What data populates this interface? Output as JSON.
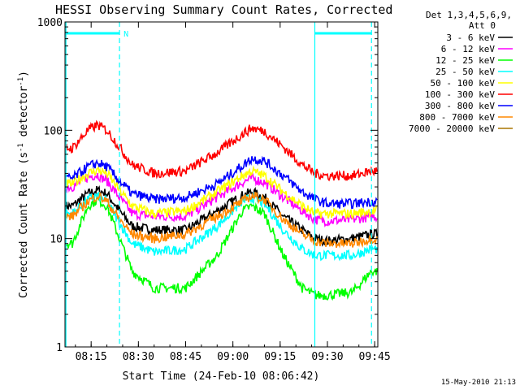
{
  "chart_data": {
    "type": "line",
    "title": "HESSI Observing Summary Count Rates, Corrected",
    "xlabel": "Start Time (24-Feb-10 08:06:42)",
    "ylabel_main": "Corrected Count Rate (s",
    "ylabel_sup1": "-1",
    "ylabel_mid": " detector",
    "ylabel_sup2": "-1",
    "ylabel_end": ")",
    "xlim": [
      "08:06:42",
      "09:46:00"
    ],
    "ylim": [
      1,
      1000
    ],
    "yscale": "log",
    "x_ticks": [
      "08:15",
      "08:30",
      "08:45",
      "09:00",
      "09:15",
      "09:30",
      "09:45"
    ],
    "y_ticks": [
      "1",
      "10",
      "100",
      "1000"
    ],
    "legend_header": [
      "Det 1,3,4,5,6,9,",
      "Att 0"
    ],
    "legend_position": "right",
    "timestamp": "15-May-2010 21:13",
    "annotations": [
      {
        "type": "night",
        "text": "N",
        "x_start": "08:07",
        "x_end": "08:24",
        "color": "#00ffff"
      },
      {
        "type": "night",
        "text": "",
        "x_start": "09:26",
        "x_end": "09:44",
        "color": "#00ffff"
      }
    ],
    "x": [
      "08:09",
      "08:14",
      "08:17",
      "08:20",
      "08:24",
      "08:28",
      "08:35",
      "08:45",
      "08:55",
      "09:03",
      "09:06",
      "09:10",
      "09:16",
      "09:22",
      "09:26",
      "09:30",
      "09:38",
      "09:44"
    ],
    "series": [
      {
        "name": "3 - 6 keV",
        "color": "#000000",
        "values": [
          20,
          26,
          28,
          26,
          18,
          13,
          12,
          12,
          18,
          25,
          27,
          24,
          16,
          12,
          10,
          9.5,
          10,
          11
        ]
      },
      {
        "name": "6 - 12 keV",
        "color": "#ff00ff",
        "values": [
          30,
          37,
          39,
          34,
          24,
          17,
          16,
          16,
          24,
          33,
          36,
          33,
          24,
          18,
          15,
          14.5,
          15,
          16
        ]
      },
      {
        "name": "12 - 25 keV",
        "color": "#00ff00",
        "values": [
          9,
          20,
          23,
          20,
          10,
          5,
          3.5,
          3.5,
          7,
          18,
          20,
          17,
          7,
          3.5,
          3,
          3,
          3.2,
          5
        ]
      },
      {
        "name": "25 - 50 keV",
        "color": "#00ffff",
        "values": [
          17,
          23,
          25,
          22,
          14,
          9,
          7.5,
          8,
          13,
          22,
          24,
          21,
          12,
          8,
          7,
          7,
          7,
          8
        ]
      },
      {
        "name": "50 - 100 keV",
        "color": "#ffff00",
        "values": [
          32,
          40,
          43,
          40,
          28,
          20,
          17,
          18,
          27,
          38,
          42,
          38,
          27,
          20,
          17,
          17,
          17,
          18
        ]
      },
      {
        "name": "100 - 300 keV",
        "color": "#ff0000",
        "values": [
          68,
          100,
          112,
          100,
          70,
          48,
          40,
          42,
          62,
          92,
          105,
          98,
          70,
          48,
          40,
          38,
          38,
          42
        ]
      },
      {
        "name": "300 - 800 keV",
        "color": "#0000ff",
        "values": [
          36,
          46,
          50,
          46,
          34,
          26,
          23,
          24,
          32,
          47,
          55,
          52,
          38,
          27,
          23,
          21,
          21,
          22
        ]
      },
      {
        "name": "800 - 7000 keV",
        "color": "#ff8800",
        "values": [
          16,
          22,
          25,
          22,
          15,
          11,
          10,
          11,
          16,
          22,
          25,
          23,
          15,
          11,
          9.5,
          9,
          9,
          10
        ]
      },
      {
        "name": "7000 - 20000 keV",
        "color": "#aa7700",
        "values": [
          1,
          1,
          1,
          1,
          1,
          1,
          1,
          1,
          1,
          1,
          1,
          1,
          1,
          1,
          1,
          1,
          1,
          1
        ]
      }
    ]
  }
}
